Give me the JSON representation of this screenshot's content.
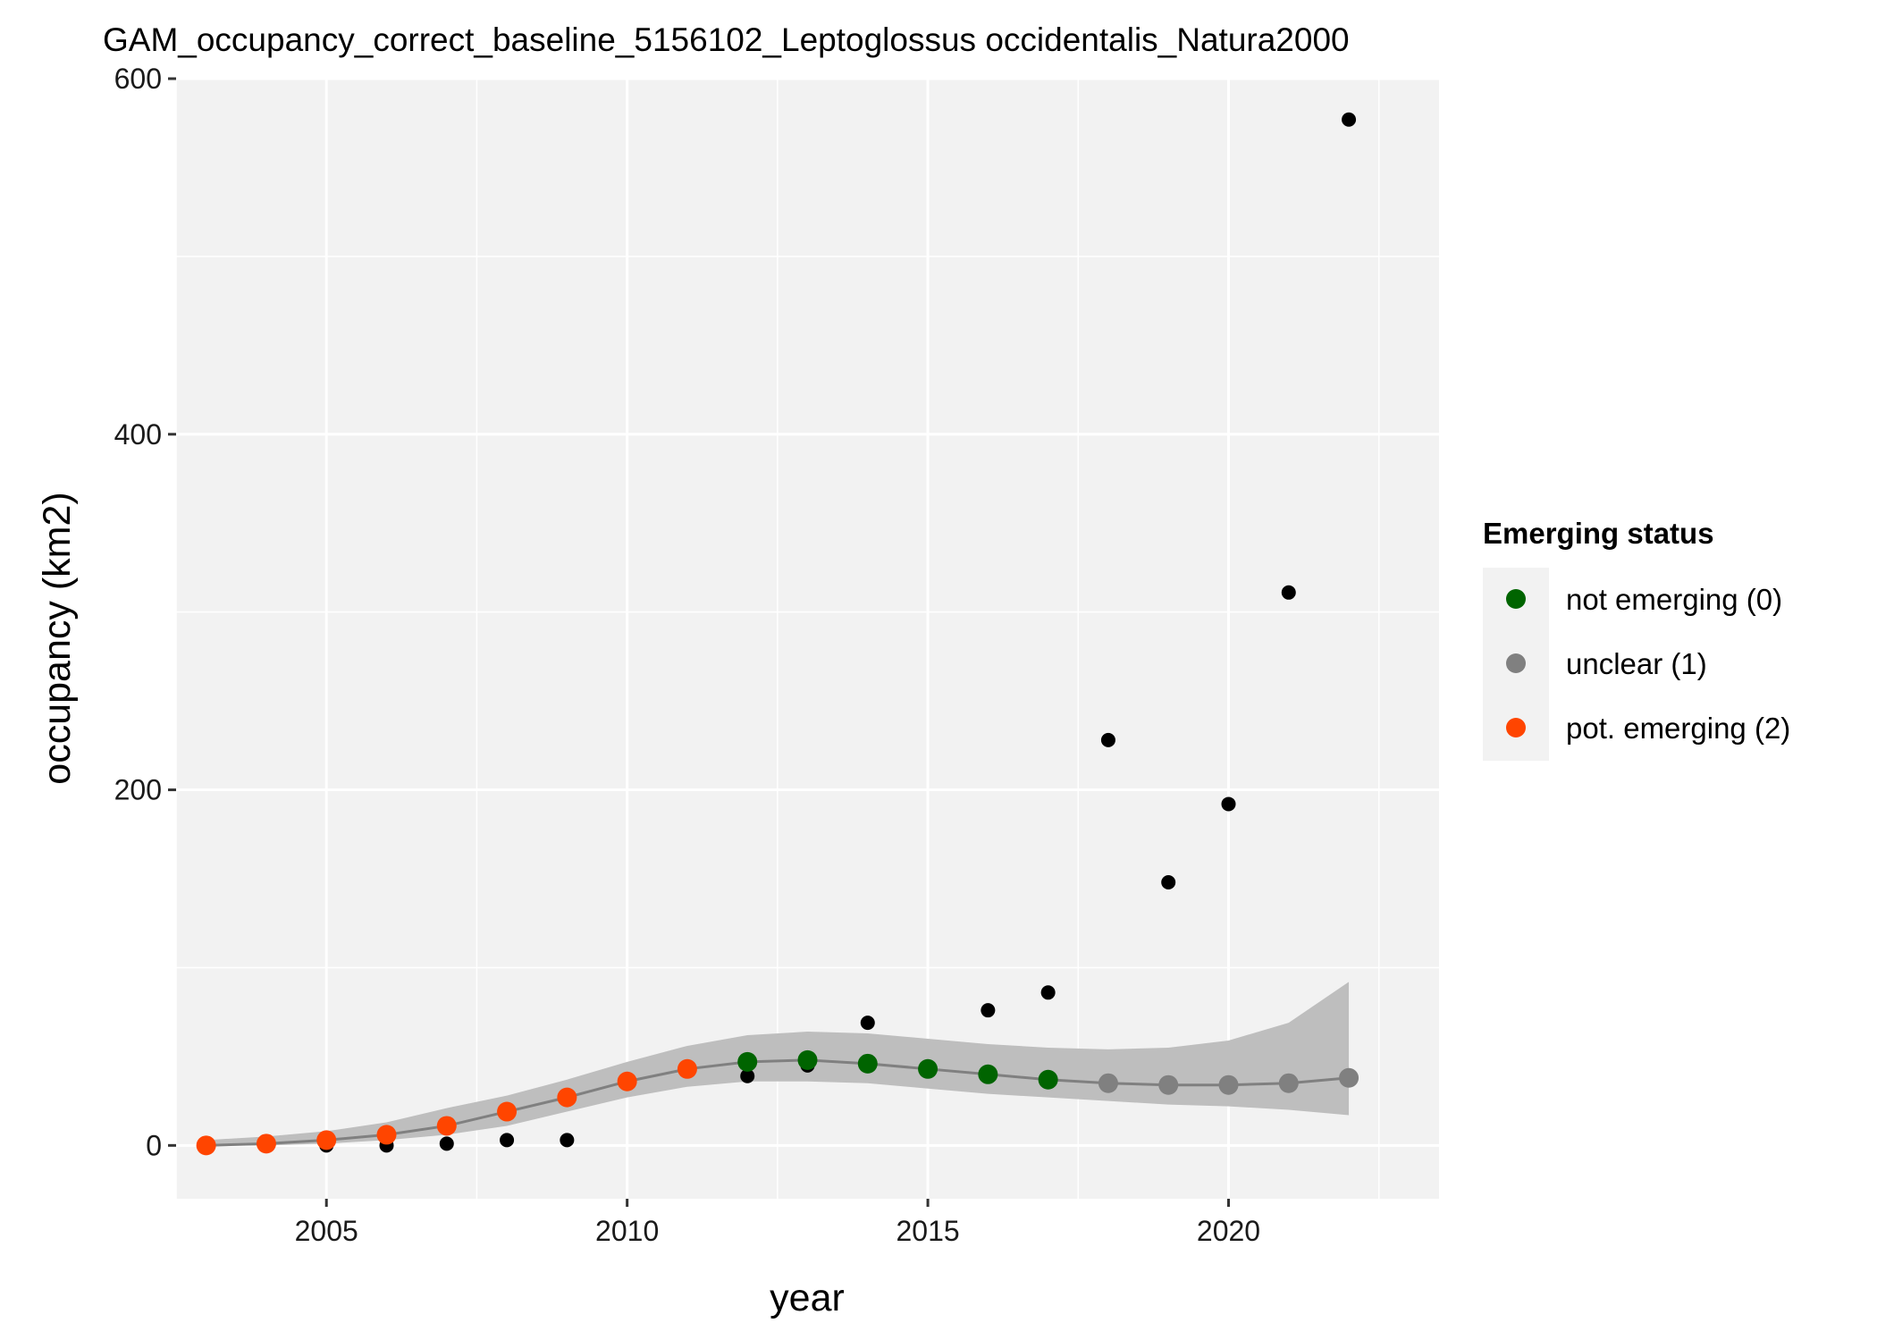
{
  "chart_data": {
    "type": "scatter",
    "title": "GAM_occupancy_correct_baseline_5156102_Leptoglossus occidentalis_Natura2000",
    "xlabel": "year",
    "ylabel": "occupancy (km2)",
    "xlim": [
      2002.5,
      2023.5
    ],
    "ylim": [
      -30,
      600
    ],
    "x_ticks": [
      2005,
      2010,
      2015,
      2020
    ],
    "y_ticks": [
      0,
      200,
      400,
      600
    ],
    "grid": true,
    "legend": {
      "title": "Emerging status",
      "placement": "right",
      "items": [
        {
          "label": "not emerging (0)",
          "color": "#006400"
        },
        {
          "label": "unclear (1)",
          "color": "#808080"
        },
        {
          "label": "pot. emerging (2)",
          "color": "#FF4500"
        }
      ]
    },
    "observed": {
      "x": [
        2003,
        2004,
        2005,
        2006,
        2007,
        2008,
        2009,
        2010,
        2011,
        2012,
        2013,
        2014,
        2015,
        2016,
        2017,
        2018,
        2019,
        2020,
        2021,
        2022
      ],
      "y": [
        0,
        0,
        0,
        0,
        1,
        3,
        3,
        37,
        43,
        39,
        45,
        69,
        44,
        76,
        86,
        228,
        148,
        192,
        311,
        577
      ],
      "color": "#000000"
    },
    "gam_fit": {
      "x": [
        2003,
        2004,
        2005,
        2006,
        2007,
        2008,
        2009,
        2010,
        2011,
        2012,
        2013,
        2014,
        2015,
        2016,
        2017,
        2018,
        2019,
        2020,
        2021,
        2022
      ],
      "y": [
        0,
        1,
        3,
        6,
        11,
        19,
        27,
        36,
        43,
        47,
        48,
        46,
        43,
        40,
        37,
        35,
        34,
        34,
        35,
        38
      ],
      "lower": [
        0,
        0,
        1,
        3,
        6,
        11,
        19,
        27,
        33,
        36,
        36,
        35,
        32,
        29,
        27,
        25,
        23,
        22,
        20,
        17
      ],
      "upper": [
        3,
        5,
        8,
        13,
        21,
        28,
        37,
        47,
        56,
        62,
        64,
        63,
        60,
        57,
        55,
        54,
        55,
        59,
        69,
        92
      ],
      "status": [
        2,
        2,
        2,
        2,
        2,
        2,
        2,
        2,
        2,
        0,
        0,
        0,
        0,
        0,
        0,
        1,
        1,
        1,
        1,
        1
      ],
      "line_color": "#808080",
      "band_color": "#BEBEBE"
    },
    "status_colors": {
      "0": "#006400",
      "1": "#808080",
      "2": "#FF4500"
    }
  }
}
